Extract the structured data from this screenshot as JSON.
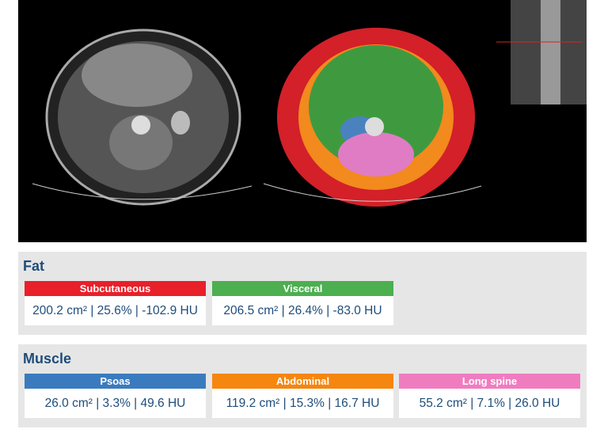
{
  "sections": [
    {
      "title": "Fat",
      "items": [
        {
          "label": "Subcutaneous",
          "color": "#e8202a",
          "stats": "200.2 cm² | 25.6% | -102.9 HU"
        },
        {
          "label": "Visceral",
          "color": "#4caf50",
          "stats": "206.5 cm² | 26.4% | -83.0 HU"
        }
      ]
    },
    {
      "title": "Muscle",
      "items": [
        {
          "label": "Psoas",
          "color": "#3a7bbf",
          "stats": "26.0 cm² | 3.3% | 49.6 HU"
        },
        {
          "label": "Abdominal",
          "color": "#f5860f",
          "stats": "119.2 cm² | 15.3% | 16.7 HU"
        },
        {
          "label": "Long spine",
          "color": "#f07cc0",
          "stats": "55.2 cm² | 7.1% | 26.0 HU"
        }
      ]
    }
  ]
}
